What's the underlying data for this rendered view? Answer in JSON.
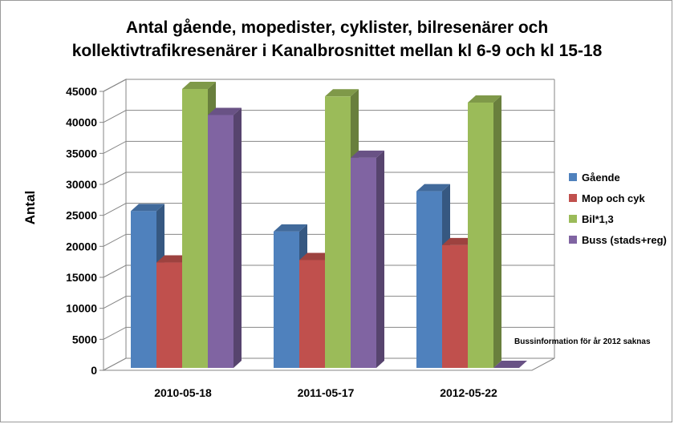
{
  "chart_data": {
    "type": "bar",
    "title_line1": "Antal gående, mopedister, cyklister, bilresenärer och",
    "title_line2": "kollektivtrafikresenärer i Kanalbrosnittet mellan kl 6-9 och kl 15-18",
    "ylabel": "Antal",
    "xlabel": "",
    "ylim": [
      0,
      45000
    ],
    "yticks": [
      0,
      5000,
      10000,
      15000,
      20000,
      25000,
      30000,
      35000,
      40000,
      45000
    ],
    "categories": [
      "2010-05-18",
      "2011-05-17",
      "2012-05-22"
    ],
    "series": [
      {
        "name": "Gående",
        "values": [
          25300,
          22000,
          28500
        ],
        "color": "#4f81bd"
      },
      {
        "name": "Mop och cyk",
        "values": [
          17000,
          17400,
          19800
        ],
        "color": "#c0504d"
      },
      {
        "name": "Bil*1,3",
        "values": [
          45000,
          43800,
          42800
        ],
        "color": "#9bbb59"
      },
      {
        "name": "Buss (stads+reg)",
        "values": [
          40800,
          33900,
          0
        ],
        "color": "#8064a2"
      }
    ],
    "grid": true,
    "legend": "right",
    "annotation": "Bussinformation  för år 2012 saknas"
  }
}
